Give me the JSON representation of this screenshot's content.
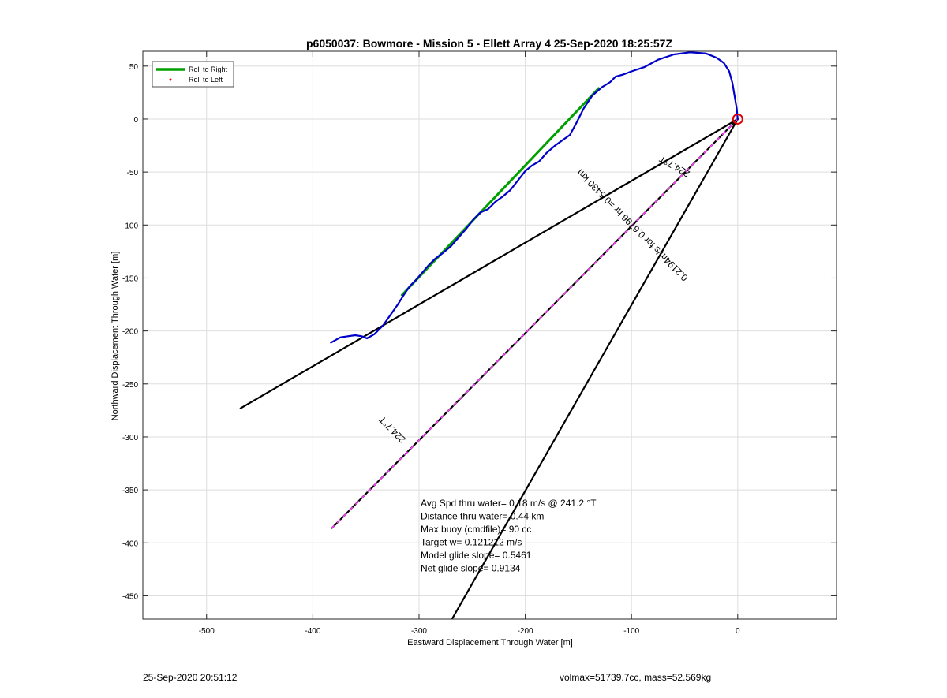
{
  "chart_data": {
    "type": "line",
    "title": "p6050037: Bowmore - Mission 5 - Ellett Array 4 25-Sep-2020 18:25:57Z",
    "xlabel": "Eastward Displacement Through Water [m]",
    "ylabel": "Northward Displacement Through Water [m]",
    "xlim": [
      -560,
      93
    ],
    "ylim": [
      -472,
      64
    ],
    "xticks": [
      -500,
      -400,
      -300,
      -200,
      -100,
      0
    ],
    "yticks": [
      50,
      0,
      -50,
      -100,
      -150,
      -200,
      -250,
      -300,
      -350,
      -400,
      -450
    ],
    "grid": true,
    "legend_position": "top-left",
    "legend": [
      {
        "label": "Roll to Right",
        "color": "#00a000",
        "marker": "line"
      },
      {
        "label": "Roll to Left",
        "color": "#ff0000",
        "marker": "dot"
      }
    ],
    "series": [
      {
        "name": "glider track",
        "color": "#0000cc",
        "x": [
          0,
          -1,
          -3,
          -5,
          -8,
          -13,
          -20,
          -30,
          -45,
          -60,
          -75,
          -88,
          -100,
          -108,
          -115,
          -120,
          -128,
          -137,
          -145,
          -152,
          -158,
          -165,
          -172,
          -180,
          -187,
          -194,
          -200,
          -207,
          -214,
          -221,
          -228,
          -235,
          -242,
          -249,
          -256,
          -263,
          -270,
          -277,
          -285,
          -291,
          -297,
          -303,
          -309,
          -315,
          -320,
          -327,
          -334,
          -342,
          -349,
          -354,
          -360,
          -367,
          -374,
          -383
        ],
        "y": [
          0,
          10,
          22,
          34,
          45,
          53,
          58,
          62,
          63,
          61,
          56,
          49,
          45,
          42,
          40,
          35,
          30,
          22,
          10,
          -4,
          -15,
          -20,
          -25,
          -32,
          -40,
          -44,
          -49,
          -58,
          -67,
          -73,
          -78,
          -85,
          -88,
          -95,
          -104,
          -112,
          -120,
          -126,
          -132,
          -138,
          -145,
          -152,
          -158,
          -167,
          -175,
          -185,
          -195,
          -203,
          -207,
          -205,
          -204,
          -205,
          -206,
          -211
        ]
      },
      {
        "name": "Roll to Right",
        "color": "#00a000",
        "x": [
          -131,
          -316
        ],
        "y": [
          29,
          -166
        ]
      },
      {
        "name": "224.7°T heading line A",
        "color": "#000000",
        "x": [
          0,
          -468
        ],
        "y": [
          0,
          -273
        ]
      },
      {
        "name": "224.7°T heading line B",
        "color": "#000000",
        "x": [
          0,
          -269
        ],
        "y": [
          0,
          -472
        ]
      },
      {
        "name": "0.2194m/s for 0.6796 hr = 0.5430 km",
        "color": "#000000",
        "dash_color": "#ff40ff",
        "x": [
          0,
          -382
        ],
        "y": [
          0,
          -386
        ]
      }
    ],
    "markers": [
      {
        "name": "start",
        "x": 0,
        "y": 0,
        "color": "#e00000",
        "shape": "circle"
      }
    ],
    "annotations": [
      {
        "text": "224.7°T",
        "x": -58,
        "y": -42,
        "angle_deg": 30.3
      },
      {
        "text": "0.2194m/s for 0.6796 hr =0.5430 km",
        "x": -97,
        "y": -98,
        "angle_deg": 45.3
      },
      {
        "text": "224.7°T",
        "x": -323,
        "y": -291,
        "angle_deg": 45.3
      }
    ],
    "stats": [
      "Avg Spd thru water=  0.18 m/s @ 241.2 °T",
      "Distance thru water=  0.44 km",
      "Max buoy (cmdfile)= 90 cc",
      "Target w= 0.121212 m/s",
      "Model glide slope= 0.5461",
      "Net glide slope= 0.9134"
    ]
  },
  "footer": {
    "timestamp": "25-Sep-2020 20:51:12",
    "volume_mass": "volmax=51739.7cc, mass=52.569kg"
  }
}
